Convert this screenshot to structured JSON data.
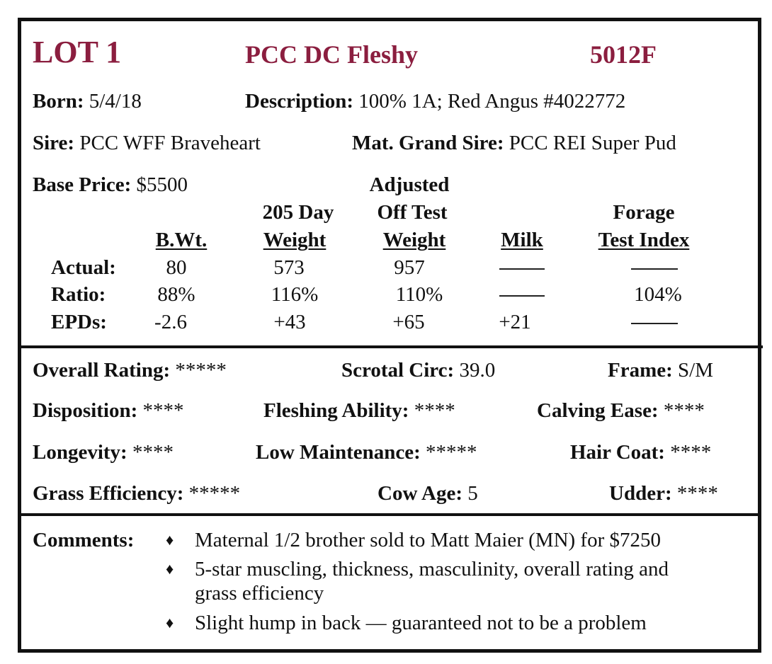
{
  "header": {
    "lot": "LOT 1",
    "name": "PCC DC Fleshy",
    "tag": "5012F",
    "accent_color": "#8b1e3f"
  },
  "info": {
    "born_label": "Born:",
    "born_value": "5/4/18",
    "description_label": "Description:",
    "description_value": "100% 1A; Red Angus  #4022772",
    "sire_label": "Sire:",
    "sire_value": "PCC WFF Braveheart",
    "mgs_label": "Mat. Grand Sire:",
    "mgs_value": "PCC REI Super Pud",
    "base_price_label": "Base Price:",
    "base_price_value": "$5500"
  },
  "table": {
    "headers": {
      "bwt": "B.Wt.",
      "w205_line1": "205 Day",
      "w205_line2": "Weight",
      "adj_line1": "Adjusted",
      "adj_line2": "Off Test",
      "adj_line3": "Weight",
      "milk": "Milk",
      "forage_line1": "Forage",
      "forage_line2": "Test Index"
    },
    "rows": [
      {
        "label": "Actual:",
        "bwt": "80",
        "w205": "573",
        "adj": "957",
        "milk": "",
        "forage": ""
      },
      {
        "label": "Ratio:",
        "bwt": "88%",
        "w205": "116%",
        "adj": "110%",
        "milk": "",
        "forage": "104%"
      },
      {
        "label": "EPDs:",
        "bwt": "-2.6",
        "w205": "+43",
        "adj": "+65",
        "milk": "+21",
        "forage": ""
      }
    ]
  },
  "ratings": {
    "overall_label": "Overall Rating:",
    "overall_value": "*****",
    "scrotal_label": "Scrotal Circ:",
    "scrotal_value": "39.0",
    "frame_label": "Frame:",
    "frame_value": "S/M",
    "disposition_label": "Disposition:",
    "disposition_value": "****",
    "fleshing_label": "Fleshing Ability:",
    "fleshing_value": "****",
    "calving_label": "Calving Ease:",
    "calving_value": "****",
    "longevity_label": "Longevity:",
    "longevity_value": "****",
    "lowmaint_label": "Low Maintenance:",
    "lowmaint_value": "*****",
    "haircoat_label": "Hair Coat:",
    "haircoat_value": "****",
    "grass_label": "Grass Efficiency:",
    "grass_value": "*****",
    "cowage_label": "Cow Age:",
    "cowage_value": "5",
    "udder_label": "Udder:",
    "udder_value": "****"
  },
  "comments": {
    "label": "Comments:",
    "bullet_glyph": "♦",
    "item1": "Maternal 1/2 brother sold to Matt Maier (MN) for $7250",
    "item2_line1": "5-star muscling, thickness, masculinity, overall rating and",
    "item2_line2": "grass efficiency",
    "item3": "Slight hump in back — guaranteed not to be a problem"
  }
}
